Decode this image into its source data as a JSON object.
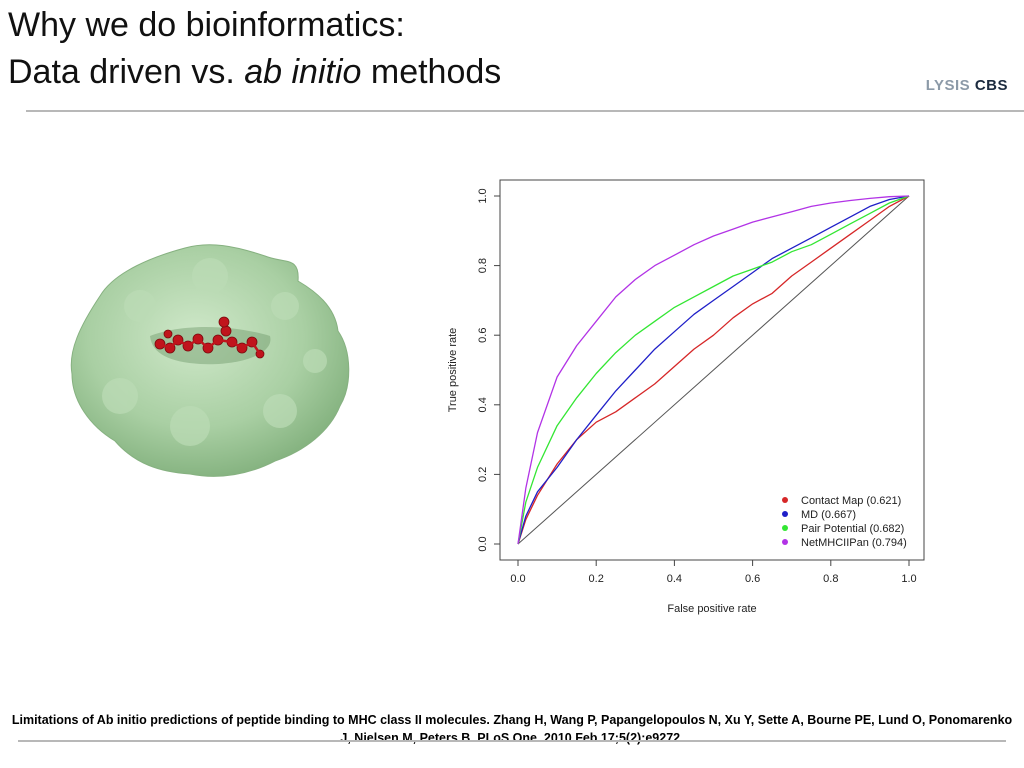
{
  "slide": {
    "title_line1": "Why we do bioinformatics:",
    "title_line2_prefix": "Data driven vs. ",
    "title_line2_italic": "ab initio",
    "title_line2_suffix": " methods",
    "logo_part1": "LYSIS",
    "logo_part2": "CBS",
    "caption": "Limitations of Ab initio predictions of peptide binding to MHC class II molecules. Zhang H, Wang P, Papangelopoulos N, Xu Y, Sette A, Bourne PE, Lund O, Ponomarenko J, Nielsen M, Peters B. PLoS One. 2010 Feb 17;5(2):e9272."
  },
  "colors": {
    "protein_surface": "#a9cfa3",
    "peptide": "#c0141c",
    "rule": "#b8b8b8"
  },
  "chart_data": {
    "type": "line",
    "title": "",
    "xlabel": "False positive rate",
    "ylabel": "True positive rate",
    "xlim": [
      0,
      1
    ],
    "ylim": [
      0,
      1
    ],
    "xticks": [
      "0.0",
      "0.2",
      "0.4",
      "0.6",
      "0.8",
      "1.0"
    ],
    "yticks": [
      "0.0",
      "0.2",
      "0.4",
      "0.6",
      "0.8",
      "1.0"
    ],
    "legend_position": "bottom-right",
    "grid": false,
    "diagonal": true,
    "series": [
      {
        "name": "Contact Map (0.621)",
        "color": "#d62728",
        "x": [
          0,
          0.02,
          0.05,
          0.1,
          0.15,
          0.2,
          0.25,
          0.3,
          0.35,
          0.4,
          0.45,
          0.5,
          0.55,
          0.6,
          0.65,
          0.7,
          0.75,
          0.8,
          0.85,
          0.9,
          0.95,
          1.0
        ],
        "y": [
          0,
          0.07,
          0.14,
          0.23,
          0.3,
          0.35,
          0.38,
          0.42,
          0.46,
          0.51,
          0.56,
          0.6,
          0.65,
          0.69,
          0.72,
          0.77,
          0.81,
          0.85,
          0.89,
          0.93,
          0.97,
          1.0
        ]
      },
      {
        "name": "MD (0.667)",
        "color": "#1f1fc8",
        "x": [
          0,
          0.02,
          0.05,
          0.1,
          0.15,
          0.2,
          0.25,
          0.3,
          0.35,
          0.4,
          0.45,
          0.5,
          0.55,
          0.6,
          0.65,
          0.7,
          0.75,
          0.8,
          0.85,
          0.9,
          0.95,
          1.0
        ],
        "y": [
          0,
          0.08,
          0.15,
          0.22,
          0.3,
          0.37,
          0.44,
          0.5,
          0.56,
          0.61,
          0.66,
          0.7,
          0.74,
          0.78,
          0.82,
          0.85,
          0.88,
          0.91,
          0.94,
          0.97,
          0.99,
          1.0
        ]
      },
      {
        "name": "Pair Potential (0.682)",
        "color": "#33e633",
        "x": [
          0,
          0.02,
          0.05,
          0.1,
          0.15,
          0.2,
          0.25,
          0.3,
          0.35,
          0.4,
          0.45,
          0.5,
          0.55,
          0.6,
          0.65,
          0.7,
          0.75,
          0.8,
          0.85,
          0.9,
          0.95,
          1.0
        ],
        "y": [
          0,
          0.12,
          0.22,
          0.34,
          0.42,
          0.49,
          0.55,
          0.6,
          0.64,
          0.68,
          0.71,
          0.74,
          0.77,
          0.79,
          0.81,
          0.84,
          0.86,
          0.89,
          0.92,
          0.95,
          0.98,
          1.0
        ]
      },
      {
        "name": "NetMHCIIPan (0.794)",
        "color": "#b233e6",
        "x": [
          0,
          0.02,
          0.05,
          0.1,
          0.15,
          0.2,
          0.25,
          0.3,
          0.35,
          0.4,
          0.45,
          0.5,
          0.55,
          0.6,
          0.65,
          0.7,
          0.75,
          0.8,
          0.85,
          0.9,
          0.95,
          1.0
        ],
        "y": [
          0,
          0.16,
          0.32,
          0.48,
          0.57,
          0.64,
          0.71,
          0.76,
          0.8,
          0.83,
          0.86,
          0.885,
          0.905,
          0.925,
          0.94,
          0.955,
          0.97,
          0.98,
          0.987,
          0.993,
          0.998,
          1.0
        ]
      }
    ]
  }
}
